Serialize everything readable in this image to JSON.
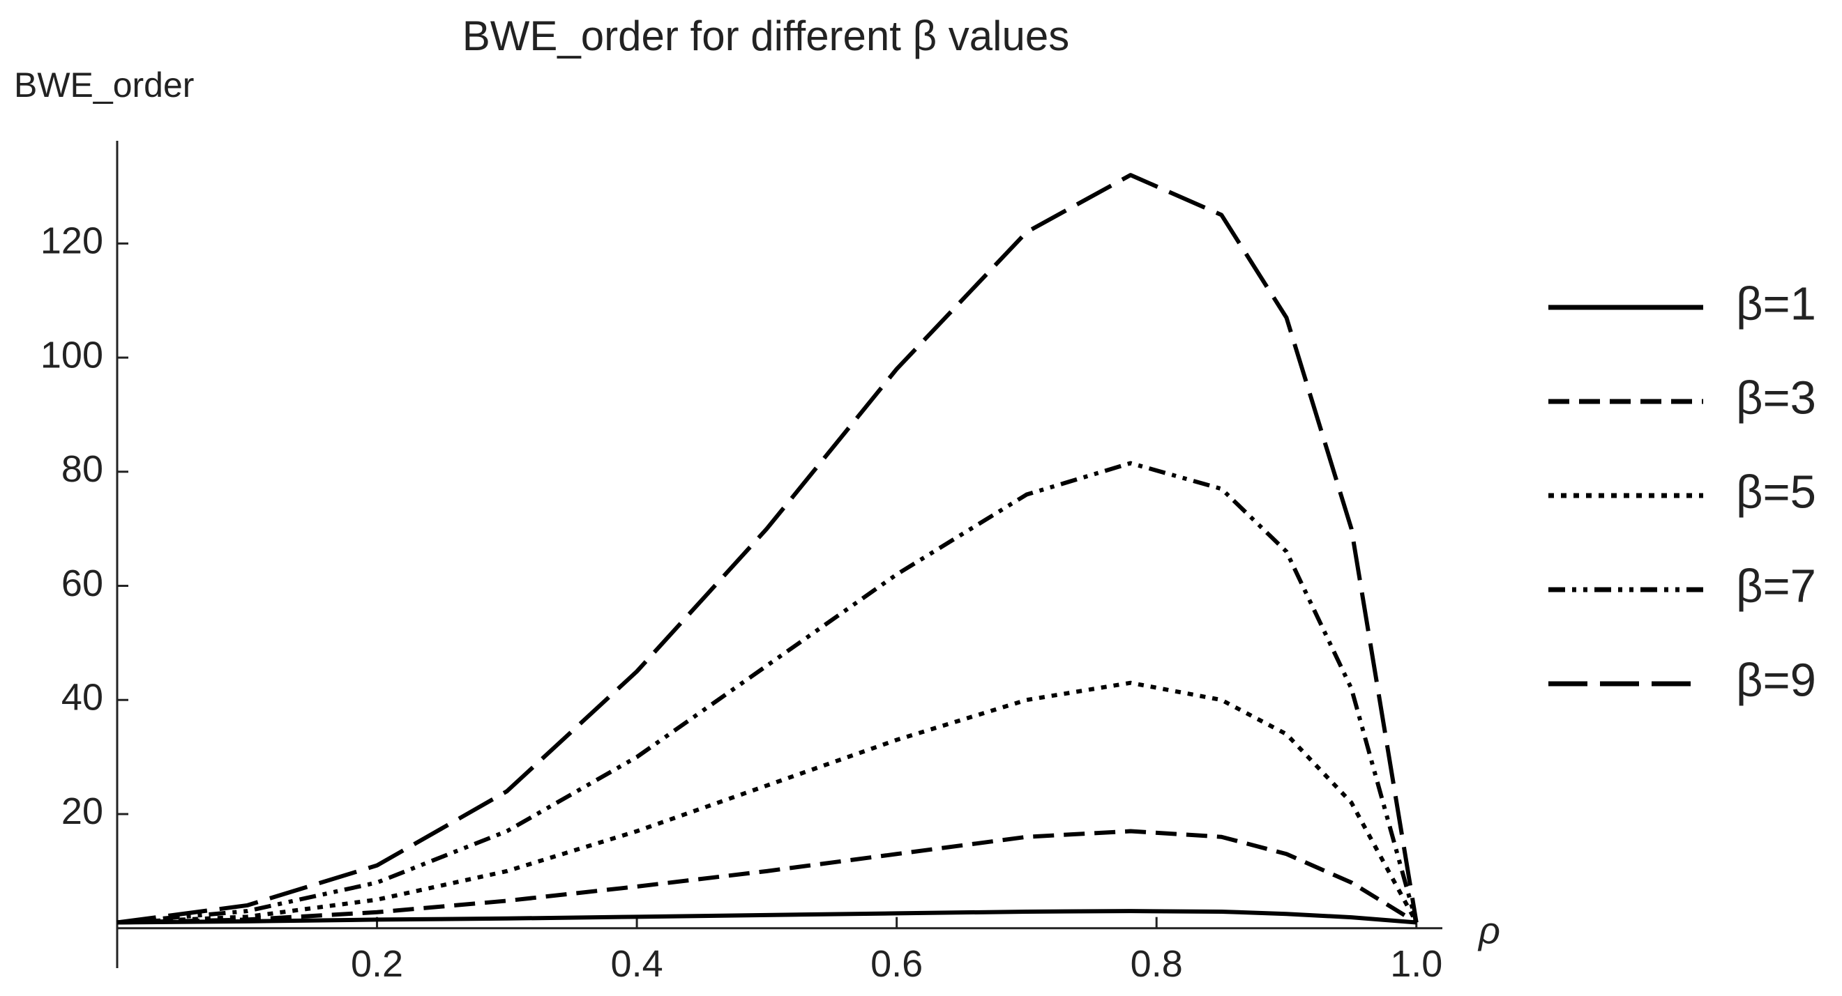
{
  "chart_data": {
    "type": "line",
    "title": "BWE_order for different β values",
    "y_label": "BWE_order",
    "x_label": "ρ",
    "x": [
      0,
      0.1,
      0.2,
      0.3,
      0.4,
      0.5,
      0.6,
      0.7,
      0.78,
      0.85,
      0.9,
      0.95,
      1
    ],
    "series": [
      {
        "name": "β=1",
        "color": "#000000",
        "values": [
          1,
          1.2,
          1.5,
          1.7,
          2,
          2.3,
          2.6,
          2.9,
          3,
          2.9,
          2.5,
          1.9,
          1
        ]
      },
      {
        "name": "β=3",
        "color": "#000000",
        "values": [
          1,
          1.5,
          2.8,
          4.8,
          7.3,
          10,
          13,
          16,
          17,
          16,
          13,
          8,
          1
        ]
      },
      {
        "name": "β=5",
        "color": "#000000",
        "values": [
          1,
          2,
          5,
          10,
          17,
          25,
          33,
          40,
          43,
          40,
          34,
          22,
          1
        ]
      },
      {
        "name": "β=7",
        "color": "#000000",
        "values": [
          1,
          3,
          8,
          17,
          30,
          46,
          62,
          76,
          81.5,
          77,
          66,
          42,
          1
        ]
      },
      {
        "name": "β=9",
        "color": "#000000",
        "values": [
          1,
          4,
          11,
          24,
          45,
          70,
          98,
          122,
          132,
          125,
          107,
          70,
          1
        ]
      }
    ],
    "xlim": [
      0,
      1.02
    ],
    "ylim": [
      -7,
      138
    ],
    "xticks": [
      0.2,
      0.4,
      0.6,
      0.8,
      {
        "value": 1,
        "label": "1.0"
      }
    ],
    "yticks": [
      20,
      40,
      60,
      80,
      100,
      120
    ],
    "legend": "right"
  }
}
